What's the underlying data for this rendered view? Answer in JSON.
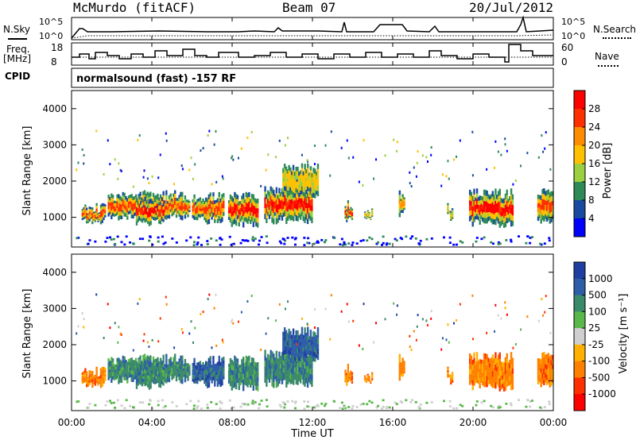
{
  "header": {
    "station": "McMurdo (fitACF)",
    "beam": "Beam 07",
    "date": "20/Jul/2012"
  },
  "sidepanel": {
    "nsky_label": "N.Sky",
    "nsearch_label": "N.Search",
    "freq_label_1": "Freq.",
    "freq_label_2": "[MHz]",
    "nave_label": "Nave",
    "cpid_label": "CPID",
    "cpid_text": "normalsound (fast) -157 RF",
    "noise_top_tick": "10^5",
    "noise_bottom_tick": "10^0",
    "freq_ticks": [
      "18",
      "8"
    ],
    "nave_ticks": [
      "60",
      "0"
    ]
  },
  "chart_data": [
    {
      "type": "heatmap",
      "name": "power",
      "ylabel": "Slant Range [km]",
      "ylim": [
        180,
        4500
      ],
      "y_ticks": [
        "4000",
        "3000",
        "2000",
        "1000"
      ],
      "colorbar_label": "Power [dB]",
      "colorbar_ticks": [
        "28",
        "24",
        "20",
        "16",
        "12",
        "8",
        "4"
      ],
      "colorbar_colors": [
        "#ff0000",
        "#ff3000",
        "#ff8c00",
        "#ffc000",
        "#9cd040",
        "#2e8b57",
        "#1a4aa0",
        "#0000ff"
      ]
    },
    {
      "type": "heatmap",
      "name": "velocity",
      "ylabel": "Slant Range [km]",
      "ylim": [
        180,
        4500
      ],
      "y_ticks": [
        "4000",
        "3000",
        "2000",
        "1000"
      ],
      "colorbar_label": "Velocity [m s⁻¹]",
      "colorbar_ticks": [
        "1000",
        "500",
        "100",
        "25",
        "-25",
        "-100",
        "-500",
        "-1000"
      ],
      "colorbar_colors": [
        "#1f3fa0",
        "#2e5ea8",
        "#3b8a6a",
        "#5ab84a",
        "#cfcfcf",
        "#ffb000",
        "#ff8000",
        "#ff3000",
        "#ff0000"
      ]
    }
  ],
  "x_axis": {
    "title": "Time UT",
    "ticks": [
      "00:00",
      "04:00",
      "08:00",
      "12:00",
      "16:00",
      "20:00",
      "00:00"
    ]
  }
}
